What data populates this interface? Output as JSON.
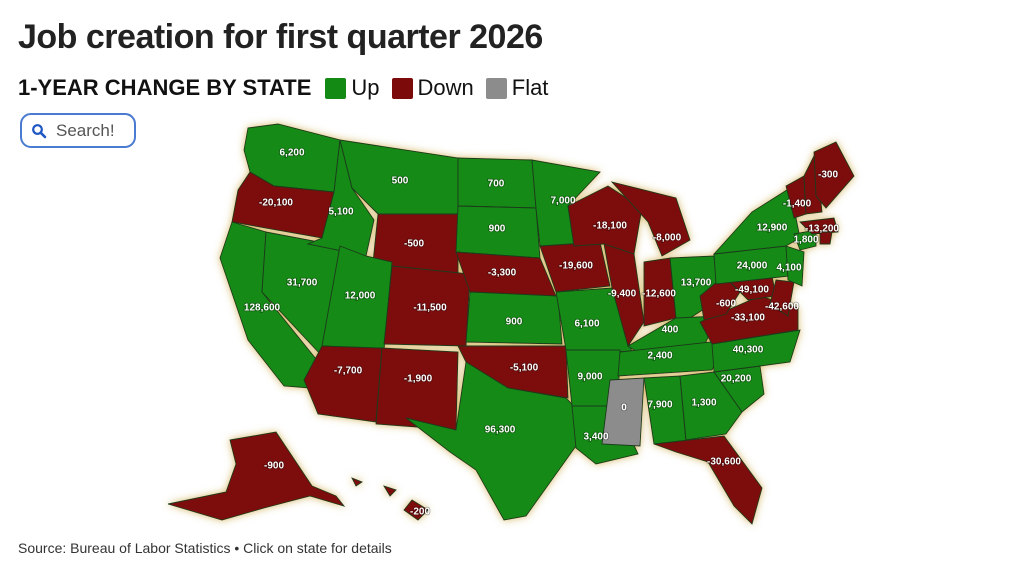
{
  "title": "Job creation for first quarter 2026",
  "subtitle": "1-YEAR CHANGE BY STATE",
  "legend": [
    {
      "key": "up",
      "label": "Up",
      "color": "#138a13"
    },
    {
      "key": "down",
      "label": "Down",
      "color": "#7d0a0a"
    },
    {
      "key": "flat",
      "label": "Flat",
      "color": "#8c8c8c"
    }
  ],
  "search": {
    "placeholder": "Search!",
    "icon": "search-icon"
  },
  "source": "Source: Bureau of Labor Statistics • Click on state for details",
  "states": [
    {
      "id": "WA",
      "value": "6,200",
      "status": "up"
    },
    {
      "id": "OR",
      "value": "-20,100",
      "status": "down"
    },
    {
      "id": "CA",
      "value": "128,600",
      "status": "up"
    },
    {
      "id": "NV",
      "value": "31,700",
      "status": "up"
    },
    {
      "id": "ID",
      "value": "5,100",
      "status": "up"
    },
    {
      "id": "MT",
      "value": "500",
      "status": "up"
    },
    {
      "id": "WY",
      "value": "-500",
      "status": "down"
    },
    {
      "id": "UT",
      "value": "12,000",
      "status": "up"
    },
    {
      "id": "AZ",
      "value": "-7,700",
      "status": "down"
    },
    {
      "id": "CO",
      "value": "-11,500",
      "status": "down"
    },
    {
      "id": "NM",
      "value": "-1,900",
      "status": "down"
    },
    {
      "id": "ND",
      "value": "700",
      "status": "up"
    },
    {
      "id": "SD",
      "value": "900",
      "status": "up"
    },
    {
      "id": "NE",
      "value": "-3,300",
      "status": "down"
    },
    {
      "id": "KS",
      "value": "900",
      "status": "up"
    },
    {
      "id": "OK",
      "value": "-5,100",
      "status": "down"
    },
    {
      "id": "TX",
      "value": "96,300",
      "status": "up"
    },
    {
      "id": "MN",
      "value": "7,000",
      "status": "up"
    },
    {
      "id": "IA",
      "value": "-19,600",
      "status": "down"
    },
    {
      "id": "MO",
      "value": "6,100",
      "status": "up"
    },
    {
      "id": "AR",
      "value": "9,000",
      "status": "up"
    },
    {
      "id": "LA",
      "value": "3,400",
      "status": "up"
    },
    {
      "id": "WI",
      "value": "-18,100",
      "status": "down"
    },
    {
      "id": "IL",
      "value": "-9,400",
      "status": "down"
    },
    {
      "id": "MI",
      "value": "-8,000",
      "status": "down"
    },
    {
      "id": "IN",
      "value": "-12,600",
      "status": "down"
    },
    {
      "id": "OH",
      "value": "13,700",
      "status": "up"
    },
    {
      "id": "KY",
      "value": "400",
      "status": "up"
    },
    {
      "id": "TN",
      "value": "2,400",
      "status": "up"
    },
    {
      "id": "MS",
      "value": "0",
      "status": "flat"
    },
    {
      "id": "AL",
      "value": "7,900",
      "status": "up"
    },
    {
      "id": "GA",
      "value": "1,300",
      "status": "up"
    },
    {
      "id": "FL",
      "value": "-30,600",
      "status": "down"
    },
    {
      "id": "SC",
      "value": "20,200",
      "status": "up"
    },
    {
      "id": "NC",
      "value": "40,300",
      "status": "up"
    },
    {
      "id": "VA",
      "value": "-33,100",
      "status": "down"
    },
    {
      "id": "WV",
      "value": "-600",
      "status": "down"
    },
    {
      "id": "MD",
      "value": "-49,100",
      "status": "down"
    },
    {
      "id": "DE",
      "value": "-42,600",
      "status": "down"
    },
    {
      "id": "PA",
      "value": "24,000",
      "status": "up"
    },
    {
      "id": "NJ",
      "value": "4,100",
      "status": "up"
    },
    {
      "id": "NY",
      "value": "12,900",
      "status": "up"
    },
    {
      "id": "CT",
      "value": "1,800",
      "status": "up"
    },
    {
      "id": "MA",
      "value": "-13,200",
      "status": "down"
    },
    {
      "id": "VT",
      "value": "-1,400",
      "status": "down"
    },
    {
      "id": "NH",
      "value": "-1,400",
      "status": "down"
    },
    {
      "id": "ME",
      "value": "-300",
      "status": "down"
    },
    {
      "id": "RI",
      "value": "-13,200",
      "status": "down"
    },
    {
      "id": "AK",
      "value": "-900",
      "status": "down"
    },
    {
      "id": "HI",
      "value": "-200",
      "status": "down"
    }
  ]
}
